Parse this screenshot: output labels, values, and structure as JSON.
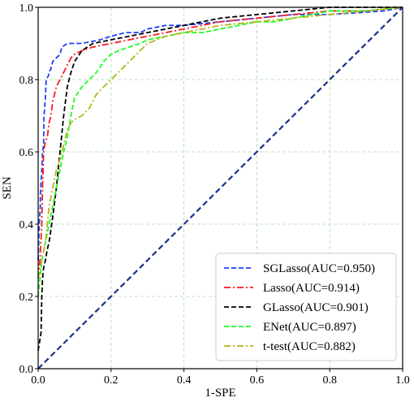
{
  "chart_data": {
    "type": "line",
    "xlabel": "1-SPE",
    "ylabel": "SEN",
    "xlim": [
      0.0,
      1.0
    ],
    "ylim": [
      0.0,
      1.0
    ],
    "xticks": [
      "0.0",
      "0.2",
      "0.4",
      "0.6",
      "0.8",
      "1.0"
    ],
    "yticks": [
      "0.0",
      "0.2",
      "0.4",
      "0.6",
      "0.8",
      "1.0"
    ],
    "grid": true,
    "legend_position": "bottom-right",
    "diagonal": {
      "x": [
        0,
        1
      ],
      "y": [
        0,
        1
      ],
      "color": "#1f2f8a"
    },
    "series": [
      {
        "name": "SGLasso(AUC=0.950)",
        "color": "#1f3fff",
        "dash": "dashed",
        "x": [
          0.0,
          0.003,
          0.006,
          0.006,
          0.01,
          0.012,
          0.015,
          0.016,
          0.02,
          0.022,
          0.028,
          0.03,
          0.035,
          0.04,
          0.05,
          0.06,
          0.065,
          0.08,
          0.1,
          0.12,
          0.17,
          0.2,
          0.24,
          0.28,
          0.3,
          0.35,
          0.4,
          0.5,
          0.6,
          0.7,
          0.8,
          0.95,
          1.0
        ],
        "y": [
          0.3,
          0.4,
          0.45,
          0.48,
          0.55,
          0.6,
          0.62,
          0.7,
          0.75,
          0.8,
          0.81,
          0.82,
          0.83,
          0.85,
          0.86,
          0.87,
          0.89,
          0.9,
          0.9,
          0.9,
          0.91,
          0.92,
          0.93,
          0.93,
          0.94,
          0.95,
          0.95,
          0.96,
          0.97,
          0.98,
          0.98,
          0.99,
          1.0
        ]
      },
      {
        "name": "Lasso(AUC=0.914)",
        "color": "#ff1a1a",
        "dash": "dashdot",
        "x": [
          0.0,
          0.005,
          0.01,
          0.012,
          0.015,
          0.02,
          0.025,
          0.03,
          0.035,
          0.04,
          0.045,
          0.05,
          0.06,
          0.07,
          0.08,
          0.09,
          0.1,
          0.12,
          0.15,
          0.2,
          0.25,
          0.3,
          0.35,
          0.4,
          0.45,
          0.5,
          0.6,
          0.7,
          0.8,
          0.9,
          1.0
        ],
        "y": [
          0.25,
          0.3,
          0.4,
          0.5,
          0.6,
          0.63,
          0.64,
          0.68,
          0.7,
          0.74,
          0.76,
          0.78,
          0.8,
          0.82,
          0.84,
          0.86,
          0.87,
          0.88,
          0.89,
          0.9,
          0.91,
          0.92,
          0.93,
          0.94,
          0.95,
          0.96,
          0.97,
          0.98,
          0.99,
          0.99,
          1.0
        ]
      },
      {
        "name": "GLasso(AUC=0.901)",
        "color": "#000000",
        "dash": "dashed",
        "x": [
          0.0,
          0.008,
          0.01,
          0.012,
          0.015,
          0.02,
          0.025,
          0.03,
          0.04,
          0.05,
          0.06,
          0.07,
          0.08,
          0.09,
          0.1,
          0.12,
          0.15,
          0.2,
          0.25,
          0.3,
          0.4,
          0.5,
          0.6,
          0.7,
          0.8,
          1.0
        ],
        "y": [
          0.05,
          0.1,
          0.2,
          0.25,
          0.28,
          0.3,
          0.33,
          0.35,
          0.42,
          0.5,
          0.6,
          0.7,
          0.78,
          0.82,
          0.85,
          0.88,
          0.9,
          0.91,
          0.92,
          0.93,
          0.95,
          0.97,
          0.98,
          0.99,
          1.0,
          1.0
        ]
      },
      {
        "name": "ENet(AUC=0.897)",
        "color": "#19ff19",
        "dash": "dashed",
        "x": [
          0.0,
          0.005,
          0.01,
          0.02,
          0.03,
          0.04,
          0.05,
          0.06,
          0.07,
          0.08,
          0.09,
          0.1,
          0.12,
          0.14,
          0.16,
          0.18,
          0.2,
          0.22,
          0.25,
          0.28,
          0.3,
          0.35,
          0.4,
          0.45,
          0.5,
          0.55,
          0.6,
          0.65,
          0.7,
          0.75,
          0.8,
          0.9,
          1.0
        ],
        "y": [
          0.2,
          0.25,
          0.3,
          0.35,
          0.4,
          0.45,
          0.5,
          0.55,
          0.6,
          0.64,
          0.7,
          0.75,
          0.78,
          0.8,
          0.82,
          0.85,
          0.87,
          0.88,
          0.89,
          0.9,
          0.91,
          0.92,
          0.93,
          0.93,
          0.94,
          0.95,
          0.96,
          0.96,
          0.97,
          0.98,
          0.99,
          0.99,
          1.0
        ]
      },
      {
        "name": "t-test(AUC=0.882)",
        "color": "#b5b519",
        "dash": "dashdot",
        "x": [
          0.0,
          0.01,
          0.02,
          0.03,
          0.04,
          0.05,
          0.06,
          0.07,
          0.08,
          0.09,
          0.1,
          0.12,
          0.14,
          0.16,
          0.18,
          0.2,
          0.22,
          0.25,
          0.28,
          0.3,
          0.35,
          0.4,
          0.45,
          0.5,
          0.6,
          0.7,
          0.8,
          0.9,
          1.0
        ],
        "y": [
          0.25,
          0.3,
          0.35,
          0.45,
          0.5,
          0.55,
          0.58,
          0.62,
          0.66,
          0.68,
          0.69,
          0.7,
          0.72,
          0.76,
          0.78,
          0.8,
          0.82,
          0.85,
          0.88,
          0.9,
          0.92,
          0.93,
          0.94,
          0.95,
          0.96,
          0.97,
          0.98,
          0.99,
          1.0
        ]
      }
    ]
  }
}
